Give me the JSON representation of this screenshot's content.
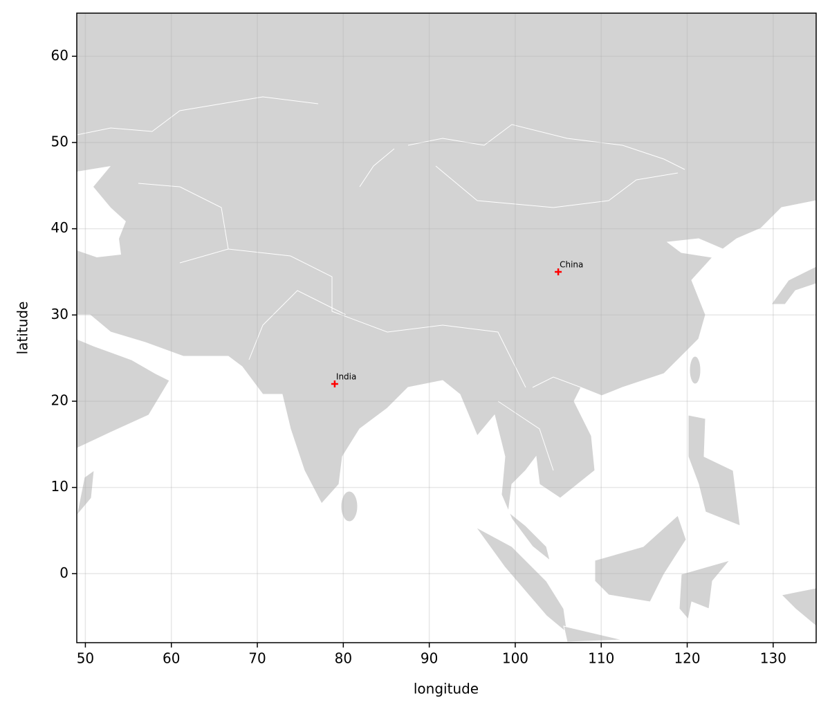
{
  "chart_data": {
    "type": "scatter",
    "x_label": "longitude",
    "y_label": "latitude",
    "x": [
      79,
      105
    ],
    "values": [
      22,
      35
    ],
    "labels": [
      "India",
      "China"
    ],
    "color": "#ff0000",
    "xlim": [
      49,
      135
    ],
    "ylim": [
      -8,
      65
    ],
    "xticks": [
      50,
      60,
      70,
      80,
      90,
      100,
      110,
      120,
      130
    ],
    "yticks": [
      0,
      10,
      20,
      30,
      40,
      50,
      60
    ],
    "grid": true
  }
}
